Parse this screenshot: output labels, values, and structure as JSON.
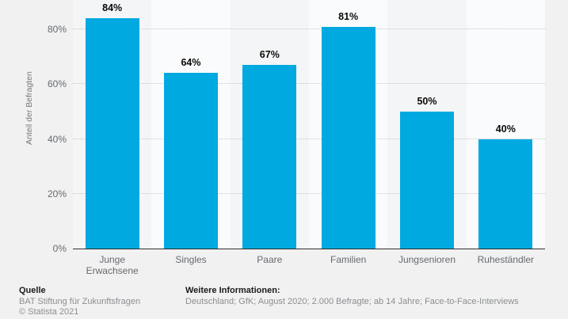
{
  "chart_data": {
    "type": "bar",
    "categories": [
      "Junge Erwachsene",
      "Singles",
      "Paare",
      "Familien",
      "Jungsenioren",
      "Ruheständler"
    ],
    "values": [
      84,
      64,
      67,
      81,
      50,
      40
    ],
    "value_labels": [
      "84%",
      "64%",
      "67%",
      "81%",
      "50%",
      "40%"
    ],
    "title": "",
    "xlabel": "",
    "ylabel": "Anteil der Befragten",
    "ylim": [
      0,
      90.7
    ],
    "yticks": [
      0,
      20,
      40,
      60,
      80
    ],
    "ytick_labels": [
      "0%",
      "20%",
      "40%",
      "60%",
      "80%"
    ],
    "grid": "horizontal-dotted",
    "legend": "none",
    "bar_color": "#00a9e0",
    "column_band_colors": [
      "#f4f5f6",
      "#fafbfc"
    ],
    "gridline_color": "#c6c8ca",
    "axis_line_color": "#2f2f2f"
  },
  "footer": {
    "source_heading": "Quelle",
    "source_name": "BAT Stiftung für Zukunftsfragen",
    "copyright": "© Statista 2021",
    "info_heading": "Weitere Informationen:",
    "info_text": "Deutschland; GfK; August 2020; 2.000 Befragte; ab 14 Jahre; Face-to-Face-Interviews"
  }
}
